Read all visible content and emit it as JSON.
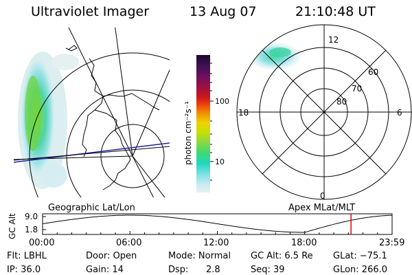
{
  "header": {
    "instrument": "Ultraviolet Imager",
    "date": "13 Aug 07",
    "time": "21:10:48 UT"
  },
  "colorbar": {
    "unit_label": "photon cm⁻²s⁻¹",
    "ticks": [
      "100",
      "10"
    ],
    "colors": [
      "#1a0a30",
      "#3a1050",
      "#6a1060",
      "#a01040",
      "#d01818",
      "#f04010",
      "#f08c00",
      "#f0d000",
      "#c8e000",
      "#90d840",
      "#40d870",
      "#20d8c0",
      "#80e0e8",
      "#c8ecf0",
      "#e8f0f0"
    ]
  },
  "polar_plot": {
    "mlt_labels": {
      "top": "12",
      "left": "18",
      "right": "6",
      "bottom": "0"
    },
    "lat_labels": [
      "60",
      "70",
      "80"
    ]
  },
  "plot_labels": {
    "left": "Geographic Lat/Lon",
    "right": "Apex MLat/MLT"
  },
  "altitude_plot": {
    "ylabel": "GC Alt",
    "yticks": [
      "9.0",
      "1.8"
    ],
    "xticks": [
      "00:00",
      "06:00",
      "12:00",
      "18:00",
      "23:59"
    ],
    "marker_hour": 21.18,
    "marker_color": "#e00000"
  },
  "info": {
    "filter": "Flt: LBHL",
    "ip": "IP: 36.0",
    "door": "Door: Open",
    "gain": "Gain: 14",
    "mode": "Mode: Normal",
    "dsp_label": "Dsp:",
    "dsp_value": "2.8",
    "gc_alt": "GC Alt: 6.5 Re",
    "seq": "Seq: 39",
    "glat": "GLat: −75.1",
    "glon": "GLon: 266.0"
  }
}
